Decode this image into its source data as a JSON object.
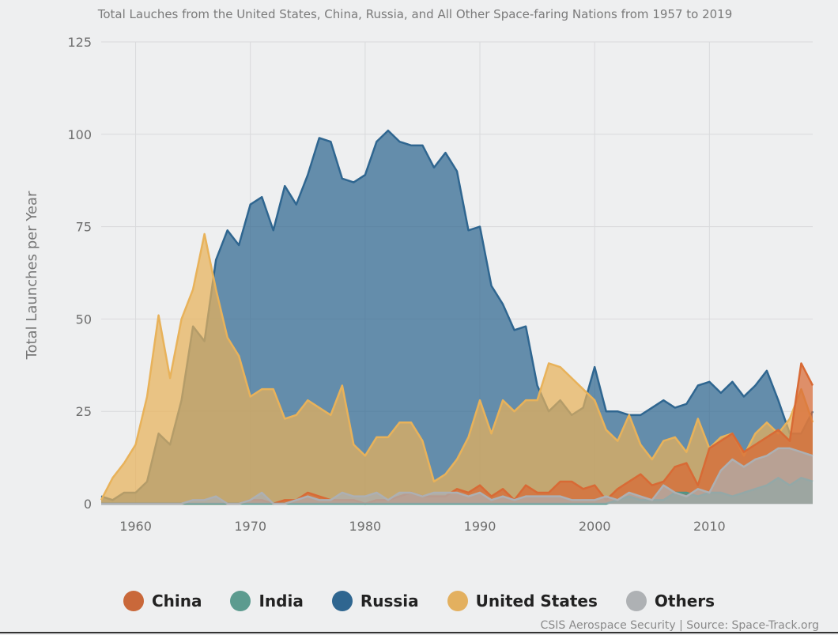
{
  "chart_data": {
    "type": "area",
    "title": "Total Lauches from the United States, China, Russia, and All Other Space-faring Nations from 1957 to 2019",
    "xlabel": "",
    "ylabel": "Total Launches per Year",
    "xlim": [
      1957,
      2019
    ],
    "ylim": [
      0,
      125
    ],
    "x_ticks": [
      1960,
      1970,
      1980,
      1990,
      2000,
      2010
    ],
    "y_ticks": [
      0,
      25,
      50,
      75,
      100,
      125
    ],
    "grid": true,
    "legend_position": "bottom",
    "x": [
      1957,
      1958,
      1959,
      1960,
      1961,
      1962,
      1963,
      1964,
      1965,
      1966,
      1967,
      1968,
      1969,
      1970,
      1971,
      1972,
      1973,
      1974,
      1975,
      1976,
      1977,
      1978,
      1979,
      1980,
      1981,
      1982,
      1983,
      1984,
      1985,
      1986,
      1987,
      1988,
      1989,
      1990,
      1991,
      1992,
      1993,
      1994,
      1995,
      1996,
      1997,
      1998,
      1999,
      2000,
      2001,
      2002,
      2003,
      2004,
      2005,
      2006,
      2007,
      2008,
      2009,
      2010,
      2011,
      2012,
      2013,
      2014,
      2015,
      2016,
      2017,
      2018,
      2019
    ],
    "series": [
      {
        "name": "Russia",
        "color": "#2f6690",
        "values": [
          2,
          1,
          3,
          3,
          6,
          19,
          16,
          28,
          48,
          44,
          66,
          74,
          70,
          81,
          83,
          74,
          86,
          81,
          89,
          99,
          98,
          88,
          87,
          89,
          98,
          101,
          98,
          97,
          97,
          91,
          95,
          90,
          74,
          75,
          59,
          54,
          47,
          48,
          32,
          25,
          28,
          24,
          26,
          37,
          25,
          25,
          24,
          24,
          26,
          28,
          26,
          27,
          32,
          33,
          30,
          33,
          29,
          32,
          36,
          28,
          19,
          19,
          25
        ]
      },
      {
        "name": "United States",
        "color": "#e8b25a",
        "values": [
          1,
          7,
          11,
          16,
          29,
          51,
          34,
          50,
          58,
          73,
          58,
          45,
          40,
          29,
          31,
          31,
          23,
          24,
          28,
          26,
          24,
          32,
          16,
          13,
          18,
          18,
          22,
          22,
          17,
          6,
          8,
          12,
          18,
          28,
          19,
          28,
          25,
          28,
          28,
          38,
          37,
          34,
          31,
          28,
          20,
          17,
          24,
          16,
          12,
          17,
          18,
          14,
          23,
          15,
          18,
          19,
          13,
          19,
          22,
          19,
          23,
          31,
          22
        ]
      },
      {
        "name": "China",
        "color": "#d86a35",
        "values": [
          0,
          0,
          0,
          0,
          0,
          0,
          0,
          0,
          0,
          0,
          0,
          0,
          0,
          1,
          1,
          0,
          1,
          1,
          3,
          2,
          1,
          1,
          1,
          0,
          1,
          1,
          2,
          3,
          2,
          2,
          2,
          4,
          3,
          5,
          2,
          4,
          1,
          5,
          3,
          3,
          6,
          6,
          4,
          5,
          1,
          4,
          6,
          8,
          5,
          6,
          10,
          11,
          5,
          15,
          17,
          19,
          14,
          16,
          18,
          20,
          17,
          38,
          32
        ]
      },
      {
        "name": "India",
        "color": "#4f9488",
        "values": [
          0,
          0,
          0,
          0,
          0,
          0,
          0,
          0,
          0,
          0,
          0,
          0,
          0,
          0,
          0,
          0,
          0,
          0,
          0,
          0,
          0,
          0,
          0,
          0,
          0,
          0,
          0,
          0,
          0,
          0,
          0,
          0,
          0,
          0,
          0,
          0,
          0,
          0,
          0,
          0,
          0,
          0,
          0,
          0,
          0,
          1,
          2,
          1,
          1,
          1,
          3,
          3,
          2,
          3,
          3,
          2,
          3,
          4,
          5,
          7,
          5,
          7,
          6
        ]
      },
      {
        "name": "Others",
        "color": "#adb0b3",
        "values": [
          0,
          0,
          0,
          0,
          0,
          0,
          0,
          0,
          1,
          1,
          2,
          0,
          0,
          1,
          3,
          0,
          0,
          1,
          2,
          1,
          1,
          3,
          2,
          2,
          3,
          1,
          3,
          3,
          2,
          3,
          3,
          3,
          2,
          3,
          1,
          2,
          1,
          2,
          2,
          2,
          2,
          1,
          1,
          1,
          2,
          1,
          3,
          2,
          1,
          5,
          3,
          2,
          4,
          3,
          9,
          12,
          10,
          12,
          13,
          15,
          15,
          14,
          13
        ]
      }
    ]
  },
  "legend": {
    "items": [
      {
        "label": "China",
        "color": "#c9683a"
      },
      {
        "label": "India",
        "color": "#5c9b8f"
      },
      {
        "label": "Russia",
        "color": "#2f6690"
      },
      {
        "label": "United States",
        "color": "#e3b05f"
      },
      {
        "label": "Others",
        "color": "#aeb1b4"
      }
    ]
  },
  "source": "CSIS Aerospace Security | Source: Space-Track.org"
}
